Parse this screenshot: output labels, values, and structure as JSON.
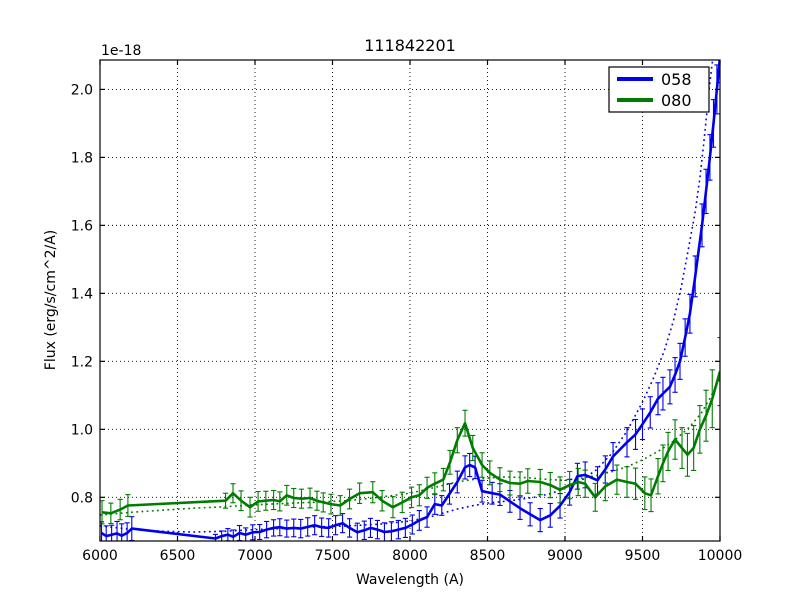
{
  "figure": {
    "title": "111842201",
    "offset_text": "1e-18",
    "xlabel": "Wavelength (A)",
    "ylabel": "Flux (erg/s/cm^2/A)"
  },
  "legend": {
    "position": "upper right",
    "entries": [
      {
        "label": "058",
        "color": "#0000ee"
      },
      {
        "label": "080",
        "color": "#007d00"
      }
    ]
  },
  "chart_data": {
    "type": "line",
    "title": "111842201",
    "xlabel": "Wavelength (A)",
    "ylabel": "Flux (erg/s/cm^2/A)",
    "y_scale_offset": "1e-18",
    "xlim": [
      6000,
      10000
    ],
    "ylim": [
      0.6715,
      2.0865
    ],
    "xticks": [
      6000,
      6500,
      7000,
      7500,
      8000,
      8500,
      9000,
      9500,
      10000
    ],
    "xtick_labels": [
      "6000",
      "6500",
      "7000",
      "7500",
      "8000",
      "8500",
      "9000",
      "9500",
      "10000"
    ],
    "yticks": [
      0.8,
      1.0,
      1.2,
      1.4,
      1.6,
      1.8,
      2.0
    ],
    "ytick_labels": [
      "0.8",
      "1.0",
      "1.2",
      "1.4",
      "1.6",
      "1.8",
      "2.0"
    ],
    "grid": true,
    "legend_position": "upper right",
    "series": [
      {
        "name": "058",
        "color": "#0000ee",
        "style": "solid",
        "errorbars": true,
        "points": [
          [
            6010,
            0.695,
            0.033
          ],
          [
            6040,
            0.686,
            0.03
          ],
          [
            6075,
            0.69,
            0.028
          ],
          [
            6110,
            0.694,
            0.035
          ],
          [
            6140,
            0.687,
            0.035
          ],
          [
            6175,
            0.695,
            0.03
          ],
          [
            6205,
            0.708,
            0.035
          ],
          [
            6745,
            0.679,
            0.012
          ],
          [
            6785,
            0.686,
            0.015
          ],
          [
            6825,
            0.69,
            0.018
          ],
          [
            6860,
            0.684,
            0.02
          ],
          [
            6900,
            0.695,
            0.022
          ],
          [
            6940,
            0.69,
            0.02
          ],
          [
            6985,
            0.697,
            0.022
          ],
          [
            7030,
            0.698,
            0.022
          ],
          [
            7075,
            0.705,
            0.024
          ],
          [
            7120,
            0.71,
            0.024
          ],
          [
            7160,
            0.712,
            0.025
          ],
          [
            7205,
            0.708,
            0.025
          ],
          [
            7250,
            0.71,
            0.026
          ],
          [
            7295,
            0.708,
            0.027
          ],
          [
            7340,
            0.713,
            0.027
          ],
          [
            7385,
            0.718,
            0.028
          ],
          [
            7430,
            0.712,
            0.027
          ],
          [
            7475,
            0.71,
            0.027
          ],
          [
            7520,
            0.718,
            0.028
          ],
          [
            7565,
            0.724,
            0.028
          ],
          [
            7610,
            0.71,
            0.027
          ],
          [
            7660,
            0.697,
            0.027
          ],
          [
            7705,
            0.703,
            0.027
          ],
          [
            7745,
            0.71,
            0.028
          ],
          [
            7790,
            0.705,
            0.027
          ],
          [
            7835,
            0.698,
            0.027
          ],
          [
            7880,
            0.7,
            0.028
          ],
          [
            7925,
            0.705,
            0.027
          ],
          [
            7970,
            0.71,
            0.028
          ],
          [
            8015,
            0.72,
            0.028
          ],
          [
            8060,
            0.732,
            0.029
          ],
          [
            8110,
            0.742,
            0.03
          ],
          [
            8160,
            0.78,
            0.03
          ],
          [
            8205,
            0.776,
            0.029
          ],
          [
            8255,
            0.81,
            0.03
          ],
          [
            8305,
            0.845,
            0.032
          ],
          [
            8355,
            0.888,
            0.034
          ],
          [
            8385,
            0.895,
            0.034
          ],
          [
            8420,
            0.888,
            0.033
          ],
          [
            8465,
            0.818,
            0.032
          ],
          [
            8530,
            0.812,
            0.032
          ],
          [
            8580,
            0.808,
            0.032
          ],
          [
            8645,
            0.788,
            0.032
          ],
          [
            8710,
            0.768,
            0.033
          ],
          [
            8775,
            0.75,
            0.034
          ],
          [
            8840,
            0.733,
            0.034
          ],
          [
            8905,
            0.747,
            0.035
          ],
          [
            8968,
            0.775,
            0.036
          ],
          [
            9030,
            0.815,
            0.038
          ],
          [
            9080,
            0.862,
            0.038
          ],
          [
            9130,
            0.866,
            0.038
          ],
          [
            9210,
            0.85,
            0.04
          ],
          [
            9260,
            0.882,
            0.04
          ],
          [
            9310,
            0.92,
            0.041
          ],
          [
            9400,
            0.962,
            0.043
          ],
          [
            9455,
            0.985,
            0.044
          ],
          [
            9500,
            1.015,
            0.045
          ],
          [
            9550,
            1.05,
            0.046
          ],
          [
            9600,
            1.09,
            0.047
          ],
          [
            9632,
            1.105,
            0.048
          ],
          [
            9677,
            1.125,
            0.05
          ],
          [
            9710,
            1.16,
            0.051
          ],
          [
            9742,
            1.2,
            0.053
          ],
          [
            9775,
            1.27,
            0.055
          ],
          [
            9806,
            1.34,
            0.057
          ],
          [
            9840,
            1.45,
            0.06
          ],
          [
            9884,
            1.6,
            0.063
          ],
          [
            9910,
            1.7,
            0.065
          ],
          [
            9935,
            1.8,
            0.067
          ],
          [
            9958,
            1.9,
            0.07
          ],
          [
            9980,
            2.0,
            0.072
          ],
          [
            10000,
            2.095,
            0.075
          ]
        ]
      },
      {
        "name": "080",
        "color": "#007d00",
        "style": "solid",
        "errorbars": true,
        "points": [
          [
            6013,
            0.756,
            0.034
          ],
          [
            6070,
            0.753,
            0.03
          ],
          [
            6130,
            0.764,
            0.03
          ],
          [
            6180,
            0.776,
            0.032
          ],
          [
            6810,
            0.79,
            0.022
          ],
          [
            6858,
            0.812,
            0.028
          ],
          [
            6910,
            0.79,
            0.029
          ],
          [
            6968,
            0.771,
            0.029
          ],
          [
            7020,
            0.788,
            0.029
          ],
          [
            7070,
            0.79,
            0.028
          ],
          [
            7120,
            0.792,
            0.028
          ],
          [
            7160,
            0.788,
            0.028
          ],
          [
            7205,
            0.806,
            0.029
          ],
          [
            7250,
            0.798,
            0.028
          ],
          [
            7300,
            0.796,
            0.028
          ],
          [
            7355,
            0.798,
            0.029
          ],
          [
            7400,
            0.79,
            0.028
          ],
          [
            7440,
            0.785,
            0.028
          ],
          [
            7490,
            0.78,
            0.029
          ],
          [
            7550,
            0.776,
            0.029
          ],
          [
            7610,
            0.795,
            0.029
          ],
          [
            7675,
            0.812,
            0.03
          ],
          [
            7760,
            0.815,
            0.031
          ],
          [
            7820,
            0.79,
            0.03
          ],
          [
            7890,
            0.771,
            0.031
          ],
          [
            7950,
            0.785,
            0.03
          ],
          [
            8010,
            0.8,
            0.03
          ],
          [
            8060,
            0.806,
            0.031
          ],
          [
            8110,
            0.828,
            0.031
          ],
          [
            8160,
            0.84,
            0.032
          ],
          [
            8215,
            0.852,
            0.033
          ],
          [
            8258,
            0.903,
            0.035
          ],
          [
            8305,
            0.968,
            0.037
          ],
          [
            8355,
            1.018,
            0.038
          ],
          [
            8405,
            0.945,
            0.037
          ],
          [
            8465,
            0.895,
            0.036
          ],
          [
            8515,
            0.872,
            0.035
          ],
          [
            8580,
            0.852,
            0.035
          ],
          [
            8645,
            0.842,
            0.035
          ],
          [
            8710,
            0.84,
            0.035
          ],
          [
            8760,
            0.848,
            0.036
          ],
          [
            8840,
            0.845,
            0.037
          ],
          [
            8905,
            0.836,
            0.037
          ],
          [
            8968,
            0.822,
            0.038
          ],
          [
            9030,
            0.836,
            0.04
          ],
          [
            9085,
            0.845,
            0.04
          ],
          [
            9130,
            0.84,
            0.04
          ],
          [
            9195,
            0.8,
            0.041
          ],
          [
            9260,
            0.832,
            0.042
          ],
          [
            9335,
            0.852,
            0.043
          ],
          [
            9400,
            0.845,
            0.045
          ],
          [
            9455,
            0.84,
            0.046
          ],
          [
            9515,
            0.812,
            0.048
          ],
          [
            9555,
            0.806,
            0.048
          ],
          [
            9600,
            0.862,
            0.052
          ],
          [
            9632,
            0.9,
            0.054
          ],
          [
            9665,
            0.935,
            0.056
          ],
          [
            9710,
            0.97,
            0.058
          ],
          [
            9755,
            0.945,
            0.06
          ],
          [
            9790,
            0.925,
            0.063
          ],
          [
            9830,
            0.945,
            0.066
          ],
          [
            9870,
            1.0,
            0.07
          ],
          [
            9910,
            1.04,
            0.075
          ],
          [
            9950,
            1.09,
            0.085
          ],
          [
            10000,
            1.17,
            0.1
          ]
        ]
      },
      {
        "name": "058 model",
        "color": "#0000ee",
        "style": "dotted",
        "errorbars": false,
        "points": [
          [
            6000,
            0.716
          ],
          [
            6200,
            0.706
          ],
          [
            6400,
            0.7
          ],
          [
            6600,
            0.698
          ],
          [
            6800,
            0.7
          ],
          [
            7000,
            0.705
          ],
          [
            7200,
            0.709
          ],
          [
            7400,
            0.713
          ],
          [
            7600,
            0.716
          ],
          [
            7800,
            0.721
          ],
          [
            8000,
            0.73
          ],
          [
            8150,
            0.745
          ],
          [
            8300,
            0.765
          ],
          [
            8400,
            0.775
          ],
          [
            8500,
            0.783
          ],
          [
            8650,
            0.79
          ],
          [
            8800,
            0.8
          ],
          [
            8900,
            0.81
          ],
          [
            9000,
            0.826
          ],
          [
            9100,
            0.848
          ],
          [
            9200,
            0.88
          ],
          [
            9300,
            0.928
          ],
          [
            9400,
            0.995
          ],
          [
            9500,
            1.08
          ],
          [
            9570,
            1.15
          ],
          [
            9640,
            1.23
          ],
          [
            9700,
            1.32
          ],
          [
            9750,
            1.42
          ],
          [
            9800,
            1.54
          ],
          [
            9840,
            1.64
          ],
          [
            9870,
            1.74
          ],
          [
            9895,
            1.84
          ],
          [
            9915,
            1.93
          ],
          [
            9930,
            2.0
          ],
          [
            9945,
            2.06
          ],
          [
            9958,
            2.11
          ]
        ]
      },
      {
        "name": "080 model",
        "color": "#007d00",
        "style": "dotted",
        "errorbars": false,
        "points": [
          [
            6000,
            0.748
          ],
          [
            6200,
            0.756
          ],
          [
            6400,
            0.762
          ],
          [
            6600,
            0.768
          ],
          [
            6800,
            0.772
          ],
          [
            7000,
            0.778
          ],
          [
            7200,
            0.782
          ],
          [
            7400,
            0.786
          ],
          [
            7600,
            0.79
          ],
          [
            7800,
            0.8
          ],
          [
            8000,
            0.812
          ],
          [
            8150,
            0.828
          ],
          [
            8300,
            0.845
          ],
          [
            8450,
            0.855
          ],
          [
            8600,
            0.86
          ],
          [
            8750,
            0.858
          ],
          [
            8900,
            0.852
          ],
          [
            9000,
            0.85
          ],
          [
            9100,
            0.856
          ],
          [
            9200,
            0.864
          ],
          [
            9300,
            0.875
          ],
          [
            9400,
            0.89
          ],
          [
            9500,
            0.91
          ],
          [
            9600,
            0.935
          ],
          [
            9700,
            0.965
          ],
          [
            9800,
            1.005
          ],
          [
            9880,
            1.048
          ],
          [
            9940,
            1.095
          ],
          [
            10000,
            1.15
          ]
        ]
      }
    ]
  }
}
